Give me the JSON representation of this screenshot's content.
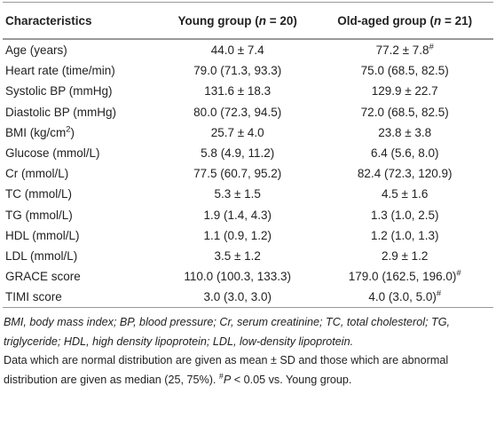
{
  "table": {
    "header": [
      [
        {
          "text": "Characteristics"
        }
      ],
      [
        {
          "text": "Young group ("
        },
        {
          "text": "n",
          "style": "italic"
        },
        {
          "text": " = 20)"
        }
      ],
      [
        {
          "text": "Old-aged group ("
        },
        {
          "text": "n",
          "style": "italic"
        },
        {
          "text": " = 21)"
        }
      ]
    ],
    "rows": [
      [
        [
          {
            "text": "Age (years)"
          }
        ],
        [
          {
            "text": "44.0 ± 7.4"
          }
        ],
        [
          {
            "text": "77.2 ± 7.8"
          },
          {
            "text": "#",
            "style": "sup"
          }
        ]
      ],
      [
        [
          {
            "text": "Heart rate (time/min)"
          }
        ],
        [
          {
            "text": "79.0 (71.3, 93.3)"
          }
        ],
        [
          {
            "text": "75.0 (68.5, 82.5)"
          }
        ]
      ],
      [
        [
          {
            "text": "Systolic BP (mmHg)"
          }
        ],
        [
          {
            "text": "131.6 ± 18.3"
          }
        ],
        [
          {
            "text": "129.9 ± 22.7"
          }
        ]
      ],
      [
        [
          {
            "text": "Diastolic BP (mmHg)"
          }
        ],
        [
          {
            "text": "80.0 (72.3, 94.5)"
          }
        ],
        [
          {
            "text": "72.0 (68.5, 82.5)"
          }
        ]
      ],
      [
        [
          {
            "text": "BMI (kg/cm"
          },
          {
            "text": "2",
            "style": "sup"
          },
          {
            "text": ")"
          }
        ],
        [
          {
            "text": "25.7 ± 4.0"
          }
        ],
        [
          {
            "text": "23.8 ± 3.8"
          }
        ]
      ],
      [
        [
          {
            "text": "Glucose (mmol/L)"
          }
        ],
        [
          {
            "text": "5.8 (4.9, 11.2)"
          }
        ],
        [
          {
            "text": "6.4 (5.6, 8.0)"
          }
        ]
      ],
      [
        [
          {
            "text": "Cr (mmol/L)"
          }
        ],
        [
          {
            "text": "77.5 (60.7, 95.2)"
          }
        ],
        [
          {
            "text": "82.4 (72.3, 120.9)"
          }
        ]
      ],
      [
        [
          {
            "text": "TC (mmol/L)"
          }
        ],
        [
          {
            "text": "5.3 ± 1.5"
          }
        ],
        [
          {
            "text": "4.5 ± 1.6"
          }
        ]
      ],
      [
        [
          {
            "text": "TG (mmol/L)"
          }
        ],
        [
          {
            "text": "1.9 (1.4, 4.3)"
          }
        ],
        [
          {
            "text": "1.3 (1.0, 2.5)"
          }
        ]
      ],
      [
        [
          {
            "text": "HDL (mmol/L)"
          }
        ],
        [
          {
            "text": "1.1 (0.9, 1.2)"
          }
        ],
        [
          {
            "text": "1.2 (1.0, 1.3)"
          }
        ]
      ],
      [
        [
          {
            "text": "LDL (mmol/L)"
          }
        ],
        [
          {
            "text": "3.5 ± 1.2"
          }
        ],
        [
          {
            "text": "2.9 ± 1.2"
          }
        ]
      ],
      [
        [
          {
            "text": "GRACE score"
          }
        ],
        [
          {
            "text": "110.0 (100.3, 133.3)"
          }
        ],
        [
          {
            "text": "179.0 (162.5, 196.0)"
          },
          {
            "text": "#",
            "style": "sup"
          }
        ]
      ],
      [
        [
          {
            "text": "TIMI score"
          }
        ],
        [
          {
            "text": "3.0 (3.0, 3.0)"
          }
        ],
        [
          {
            "text": "4.0 (3.0, 5.0)"
          },
          {
            "text": "#",
            "style": "sup"
          }
        ]
      ]
    ],
    "footnotes": [
      [
        {
          "text": "BMI, body mass index; BP, blood pressure; Cr, serum creatinine; TC, total cholesterol; TG, triglyceride; HDL, high density lipoprotein; LDL, low-density lipoprotein.",
          "style": "italic"
        }
      ],
      [
        {
          "text": "Data which are normal distribution are given as mean ± SD and those which are abnormal distribution are given as median (25, 75%). "
        },
        {
          "text": "#",
          "style": "sup"
        },
        {
          "text": "P",
          "style": "italic"
        },
        {
          "text": " < 0.05 vs. Young group."
        }
      ]
    ]
  }
}
